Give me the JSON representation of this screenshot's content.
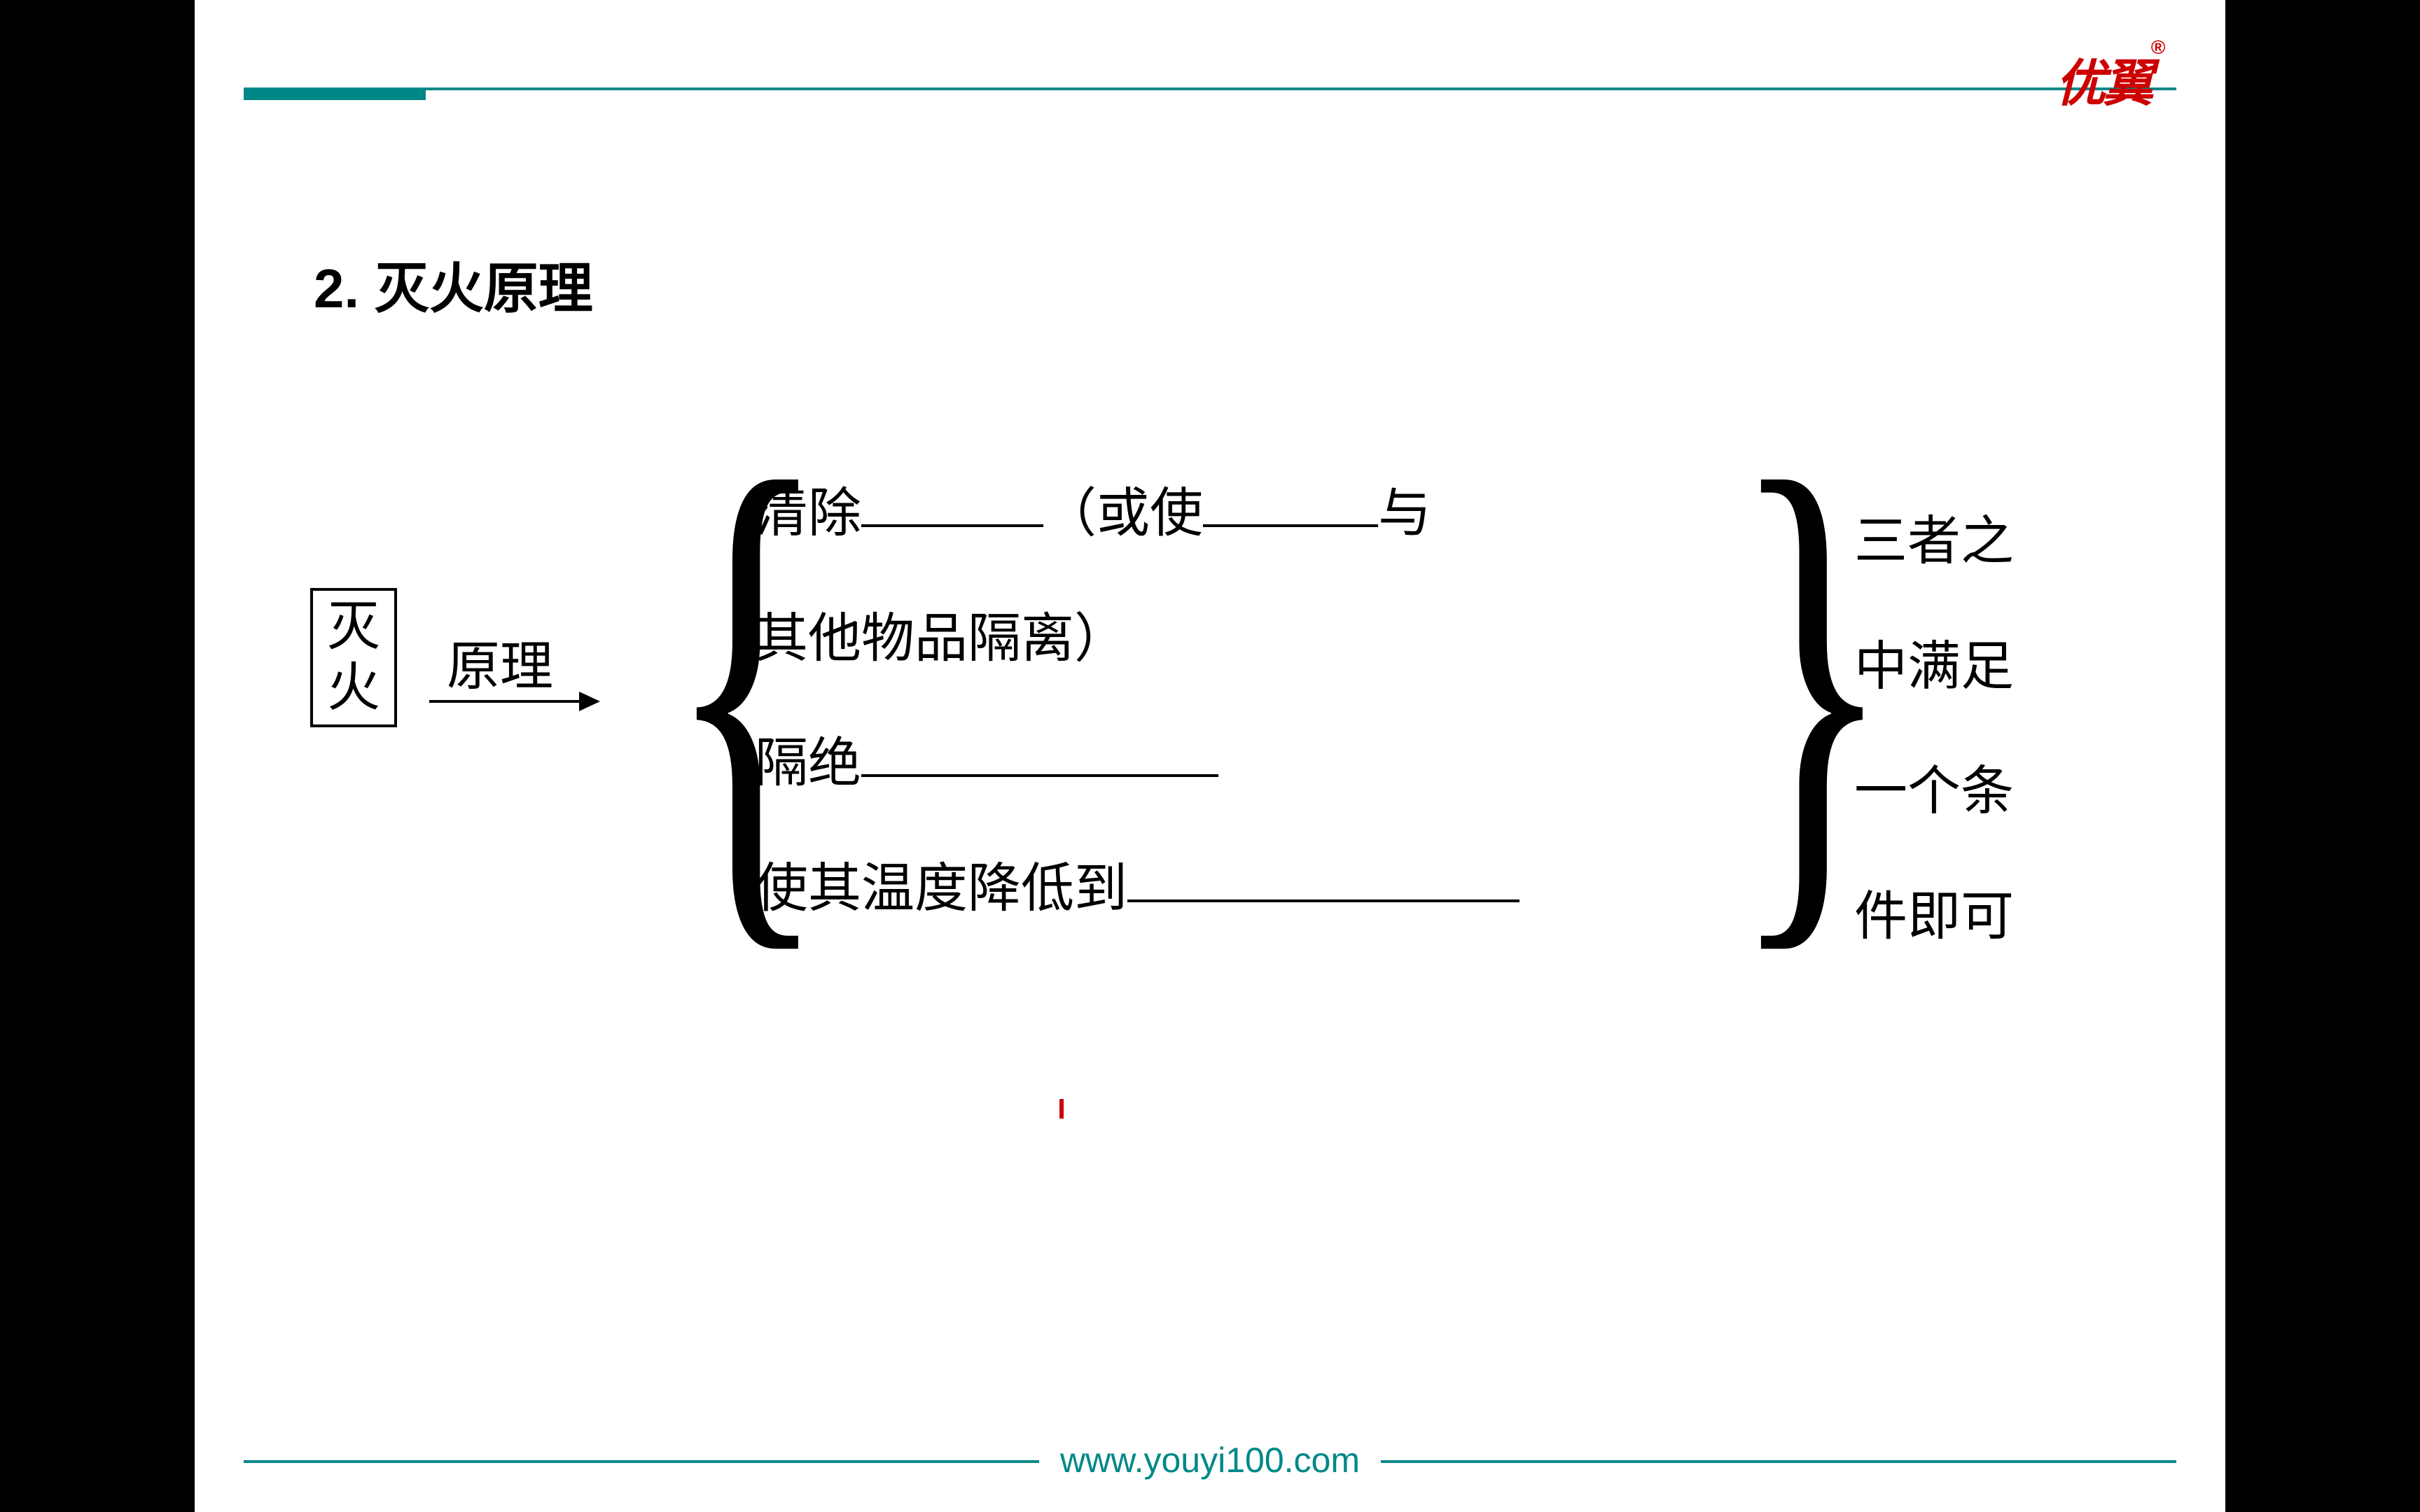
{
  "branding": {
    "logo_text": "优翼",
    "logo_color": "#cc0000",
    "logo_r_symbol": "®",
    "url": "www.youyi100.com",
    "accent_color": "#008888"
  },
  "slide": {
    "title": "2. 灭火原理",
    "title_fontsize": 78,
    "body_fontsize": 76,
    "text_color": "#000000",
    "background_color": "#ffffff",
    "box_label_line1": "灭",
    "box_label_line2": "火",
    "arrow_label": "原理",
    "middle_items": {
      "line1_part1": "清除",
      "line1_blank1_width": 260,
      "line1_part2": "（或使",
      "line1_blank2_width": 250,
      "line1_part3": "与",
      "line2": "其他物品隔离）",
      "line3_part1": "隔绝",
      "line3_blank_width": 510,
      "line4_part1": "使其温度降低到",
      "line4_blank_width": 560
    },
    "right_text": {
      "line1": "三者之",
      "line2": "中满足",
      "line3": "一个条",
      "line4": "件即可"
    }
  },
  "layout": {
    "container_width": 2900,
    "container_height": 2160,
    "letterbox_color": "#000000"
  }
}
